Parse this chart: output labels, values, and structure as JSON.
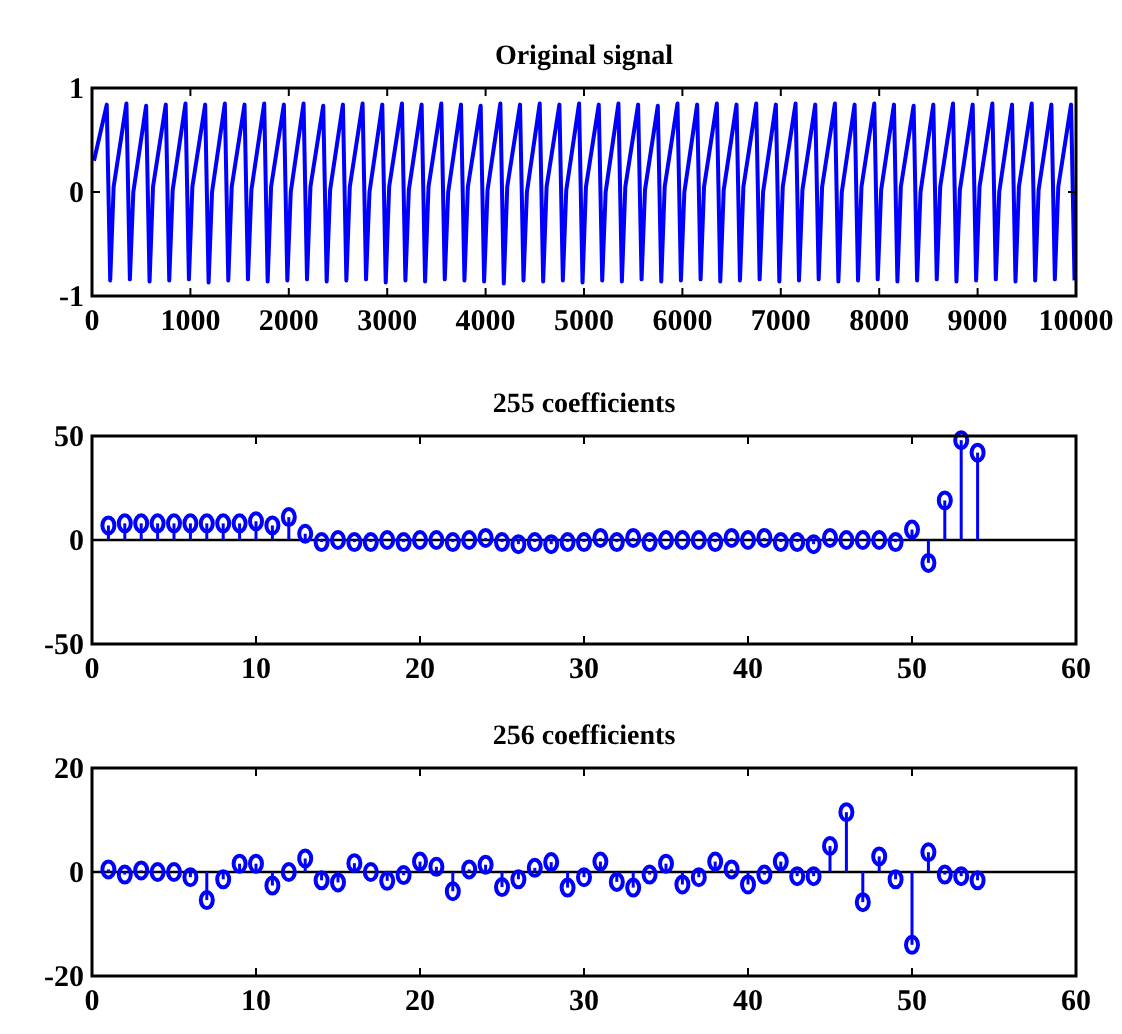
{
  "chart_data": [
    {
      "type": "line",
      "title": "Original signal",
      "color": "#0000ff",
      "xlim": [
        0,
        10000
      ],
      "ylim": [
        -1,
        1
      ],
      "xticks": [
        0,
        1000,
        2000,
        3000,
        4000,
        5000,
        6000,
        7000,
        8000,
        9000,
        10000
      ],
      "yticks": [
        -1,
        0,
        1
      ],
      "x": [
        20,
        150,
        185,
        220,
        350,
        385,
        420,
        550,
        585,
        620,
        750,
        785,
        820,
        950,
        985,
        1020,
        1150,
        1185,
        1220,
        1350,
        1385,
        1420,
        1550,
        1585,
        1620,
        1750,
        1785,
        1820,
        1950,
        1985,
        2020,
        2150,
        2185,
        2220,
        2350,
        2385,
        2420,
        2550,
        2585,
        2620,
        2750,
        2785,
        2820,
        2950,
        2985,
        3020,
        3150,
        3185,
        3220,
        3350,
        3385,
        3420,
        3550,
        3585,
        3620,
        3750,
        3785,
        3820,
        3950,
        3985,
        4020,
        4150,
        4185,
        4220,
        4350,
        4385,
        4420,
        4550,
        4585,
        4620,
        4750,
        4785,
        4820,
        4950,
        4985,
        5020,
        5150,
        5185,
        5220,
        5350,
        5385,
        5420,
        5550,
        5585,
        5620,
        5750,
        5785,
        5820,
        5950,
        5985,
        6020,
        6150,
        6185,
        6220,
        6350,
        6385,
        6420,
        6550,
        6585,
        6620,
        6750,
        6785,
        6820,
        6950,
        6985,
        7020,
        7150,
        7185,
        7220,
        7350,
        7385,
        7420,
        7550,
        7585,
        7620,
        7750,
        7785,
        7820,
        7950,
        7985,
        8020,
        8150,
        8185,
        8220,
        8350,
        8385,
        8420,
        8550,
        8585,
        8620,
        8750,
        8785,
        8820,
        8950,
        8985,
        9020,
        9150,
        9185,
        9220,
        9350,
        9385,
        9420,
        9550,
        9585,
        9620,
        9750,
        9785,
        9820,
        9950,
        9985
      ],
      "values": [
        0.3,
        0.84,
        -0.85,
        0.05,
        0.85,
        -0.84,
        0.0,
        0.83,
        -0.86,
        0.05,
        0.84,
        -0.85,
        0.02,
        0.85,
        -0.84,
        0.05,
        0.84,
        -0.87,
        0.0,
        0.85,
        -0.85,
        0.05,
        0.84,
        -0.84,
        0.02,
        0.85,
        -0.86,
        0.05,
        0.84,
        -0.85,
        0.0,
        0.85,
        -0.84,
        0.05,
        0.83,
        -0.86,
        0.02,
        0.84,
        -0.85,
        0.05,
        0.85,
        -0.84,
        0.0,
        0.84,
        -0.87,
        0.05,
        0.85,
        -0.85,
        0.02,
        0.84,
        -0.86,
        0.05,
        0.85,
        -0.84,
        0.0,
        0.84,
        -0.85,
        0.05,
        0.83,
        -0.86,
        0.02,
        0.85,
        -0.88,
        0.05,
        0.84,
        -0.85,
        0.0,
        0.85,
        -0.86,
        0.05,
        0.84,
        -0.85,
        0.02,
        0.85,
        -0.87,
        0.05,
        0.84,
        -0.85,
        0.0,
        0.85,
        -0.86,
        0.05,
        0.84,
        -0.84,
        0.02,
        0.83,
        -0.86,
        0.05,
        0.85,
        -0.85,
        0.0,
        0.84,
        -0.84,
        0.05,
        0.85,
        -0.86,
        0.02,
        0.84,
        -0.85,
        0.05,
        0.85,
        -0.84,
        0.0,
        0.84,
        -0.86,
        0.05,
        0.85,
        -0.85,
        0.02,
        0.84,
        -0.84,
        0.05,
        0.85,
        -0.86,
        0.0,
        0.84,
        -0.85,
        0.05,
        0.85,
        -0.84,
        0.02,
        0.84,
        -0.86,
        0.05,
        0.83,
        -0.85,
        0.0,
        0.84,
        -0.84,
        0.05,
        0.85,
        -0.86,
        0.02,
        0.84,
        -0.85,
        0.05,
        0.85,
        -0.84,
        0.0,
        0.84,
        -0.86,
        0.05,
        0.85,
        -0.85,
        0.02,
        0.84,
        -0.84,
        0.05,
        0.84,
        -0.85
      ]
    },
    {
      "type": "lollipop",
      "title": "255 coefficients",
      "color": "#0000ff",
      "marker": "circle",
      "xlim": [
        0,
        60
      ],
      "ylim": [
        -50,
        50
      ],
      "xticks": [
        0,
        10,
        20,
        30,
        40,
        50,
        60
      ],
      "yticks": [
        -50,
        0,
        50
      ],
      "x": [
        1,
        2,
        3,
        4,
        5,
        6,
        7,
        8,
        9,
        10,
        11,
        12,
        13,
        14,
        15,
        16,
        17,
        18,
        19,
        20,
        21,
        22,
        23,
        24,
        25,
        26,
        27,
        28,
        29,
        30,
        31,
        32,
        33,
        34,
        35,
        36,
        37,
        38,
        39,
        40,
        41,
        42,
        43,
        44,
        45,
        46,
        47,
        48,
        49,
        50,
        51,
        52,
        53,
        54
      ],
      "values": [
        7,
        8,
        8,
        8,
        8,
        8,
        8,
        8,
        8,
        9,
        7,
        11,
        3,
        -1,
        0,
        -1,
        -1,
        0,
        -1,
        0,
        0,
        -1,
        0,
        1,
        -1,
        -2,
        -1,
        -2,
        -1,
        -1,
        1,
        -1,
        1,
        -1,
        0,
        0,
        0,
        -1,
        1,
        0,
        1,
        -1,
        -1,
        -2,
        1,
        0,
        0,
        0,
        -1,
        5,
        -11,
        19,
        48,
        42
      ]
    },
    {
      "type": "lollipop",
      "title": "256 coefficients",
      "color": "#0000ff",
      "marker": "circle",
      "xlim": [
        0,
        60
      ],
      "ylim": [
        -20,
        20
      ],
      "xticks": [
        0,
        10,
        20,
        30,
        40,
        50,
        60
      ],
      "yticks": [
        -20,
        0,
        20
      ],
      "x": [
        1,
        2,
        3,
        4,
        5,
        6,
        7,
        8,
        9,
        10,
        11,
        12,
        13,
        14,
        15,
        16,
        17,
        18,
        19,
        20,
        21,
        22,
        23,
        24,
        25,
        26,
        27,
        28,
        29,
        30,
        31,
        32,
        33,
        34,
        35,
        36,
        37,
        38,
        39,
        40,
        41,
        42,
        43,
        44,
        45,
        46,
        47,
        48,
        49,
        50,
        51,
        52,
        53,
        54
      ],
      "values": [
        0.5,
        -0.5,
        0.3,
        0,
        0,
        -1,
        -5.4,
        -1.4,
        1.6,
        1.6,
        -2.6,
        0,
        2.6,
        -1.6,
        -2,
        1.7,
        0,
        -1.7,
        -0.6,
        2,
        1,
        -3.7,
        0.5,
        1.4,
        -2.9,
        -1.4,
        0.8,
        1.9,
        -3,
        -1,
        2,
        -1.9,
        -3,
        -0.5,
        1.6,
        -2.4,
        -1,
        2,
        0.5,
        -2.4,
        -0.5,
        2,
        -0.8,
        -0.8,
        5,
        11.5,
        -5.8,
        3,
        -1.4,
        -14,
        3.8,
        -0.5,
        -0.8,
        -1.6
      ]
    }
  ]
}
